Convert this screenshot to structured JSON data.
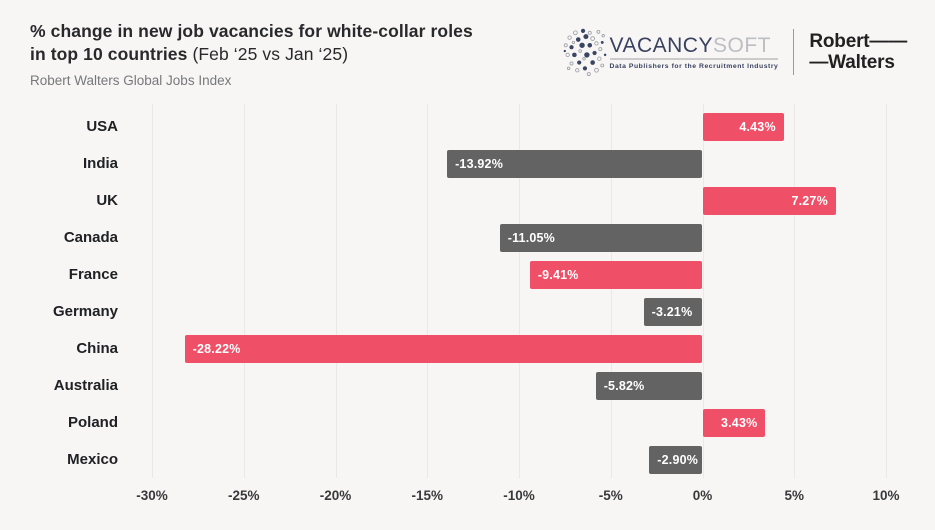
{
  "page": {
    "background": "#f7f6f5"
  },
  "header": {
    "title_line1": "% change in new job vacancies for white-collar roles",
    "title_line2_bold": "in top 10 countries",
    "title_line2_regular": "(Feb ‘25 vs Jan ‘25)",
    "subtitle": "Robert Walters Global Jobs Index"
  },
  "logos": {
    "vacancysoft": {
      "name_part1": "VACANCY",
      "name_part2": "SOFT",
      "tagline": "Data Publishers for the Recruitment Industry"
    },
    "robert_walters": {
      "line1": "Robert——",
      "line2": "—Walters"
    }
  },
  "chart_data": {
    "type": "bar",
    "orientation": "horizontal",
    "title": "% change in new job vacancies for white-collar roles in top 10 countries (Feb ‘25 vs Jan ‘25)",
    "subtitle": "Robert Walters Global Jobs Index",
    "categories": [
      "USA",
      "India",
      "UK",
      "Canada",
      "France",
      "Germany",
      "China",
      "Australia",
      "Poland",
      "Mexico"
    ],
    "values": [
      4.43,
      -13.92,
      7.27,
      -11.05,
      -9.41,
      -3.21,
      -28.22,
      -5.82,
      3.43,
      -2.9
    ],
    "value_labels": [
      "4.43%",
      "-13.92%",
      "7.27%",
      "-11.05%",
      "-9.41%",
      "-3.21%",
      "-28.22%",
      "-5.82%",
      "3.43%",
      "-2.90%"
    ],
    "row_palette": [
      "pink",
      "gray",
      "pink",
      "gray",
      "pink",
      "gray",
      "pink",
      "gray",
      "pink",
      "gray"
    ],
    "colors": {
      "pink": "#ef5068",
      "gray": "#636363"
    },
    "x_ticks": [
      "-30%",
      "-25%",
      "-20%",
      "-15%",
      "-10%",
      "-5%",
      "0%",
      "5%",
      "10%"
    ],
    "xlim": [
      -30,
      10
    ],
    "grid": true,
    "legend": "none"
  }
}
